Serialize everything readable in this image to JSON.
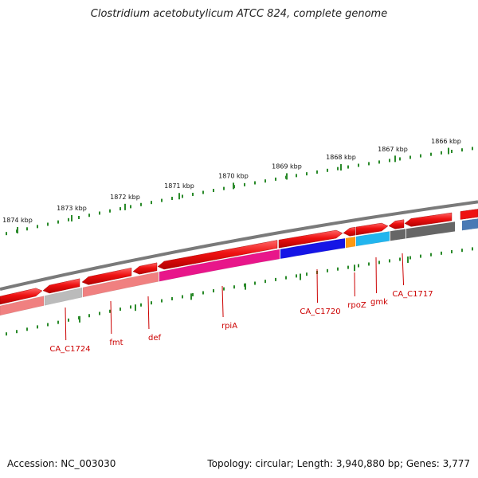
{
  "title": "Clostridium acetobutylicum ATCC 824, complete genome",
  "footer": {
    "accession": "Accession: NC_003030",
    "stats": "Topology: circular; Length: 3,940,880 bp; Genes: 3,777"
  },
  "scale_labels": [
    "1874 kbp",
    "1873 kbp",
    "1872 kbp",
    "1871 kbp",
    "1870 kbp",
    "1869 kbp",
    "1868 kbp",
    "1867 kbp",
    "1866 kbp"
  ],
  "gene_labels": [
    "CA_C1724",
    "fmt",
    "def",
    "rpiA",
    "CA_C1720",
    "rpoZ",
    "gmk",
    "CA_C1717"
  ],
  "colors": {
    "backbone": "#7a7a7a",
    "tick": "#2a8a2a",
    "gene_red": "#ee1111",
    "label_red": "#cc0000",
    "pink_light": "#f08080",
    "grey_light": "#bbbbbb",
    "magenta": "#e8168a",
    "blue": "#1515e6",
    "orange": "#ff9911",
    "cyan": "#22b5ee",
    "grey_dark": "#666666",
    "steel_blue": "#4a7ab5"
  }
}
